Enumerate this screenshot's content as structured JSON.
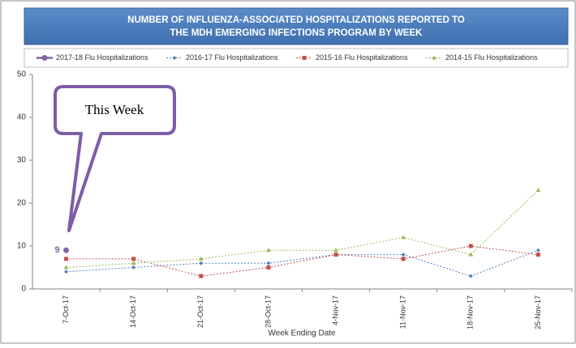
{
  "chart_data": {
    "type": "line",
    "title": [
      "NUMBER OF INFLUENZA-ASSOCIATED HOSPITALIZATIONS REPORTED TO",
      "THE MDH EMERGING INFECTIONS PROGRAM BY WEEK"
    ],
    "x_label": "Week Ending Date",
    "annotation": "This Week",
    "categories": [
      "7-Oct-17",
      "14-Oct-17",
      "21-Oct-17",
      "28-Oct-17",
      "4-Nov-17",
      "11-Nov-17",
      "18-Nov-17",
      "25-Nov-17"
    ],
    "series": [
      {
        "name": "2017-18 Flu Hospitalizations",
        "color": "#8064a2",
        "values": [
          9,
          null,
          null,
          null,
          null,
          null,
          null,
          null
        ]
      },
      {
        "name": "2016-17 Flu Hospitalizations",
        "color": "#4f81bd",
        "values": [
          4,
          5,
          6,
          6,
          8,
          8,
          3,
          9
        ]
      },
      {
        "name": "2015-16 Flu Hospitalizations",
        "color": "#c0504d",
        "values": [
          7,
          7,
          3,
          5,
          8,
          7,
          10,
          8
        ]
      },
      {
        "name": "2014-15 Flu Hospitalizations",
        "color": "#9bbb59",
        "values": [
          5,
          6,
          7,
          9,
          9,
          12,
          8,
          23
        ]
      }
    ],
    "ylim": [
      0,
      50
    ],
    "yticks": [
      0,
      10,
      20,
      30,
      40,
      50
    ],
    "grid": false
  }
}
